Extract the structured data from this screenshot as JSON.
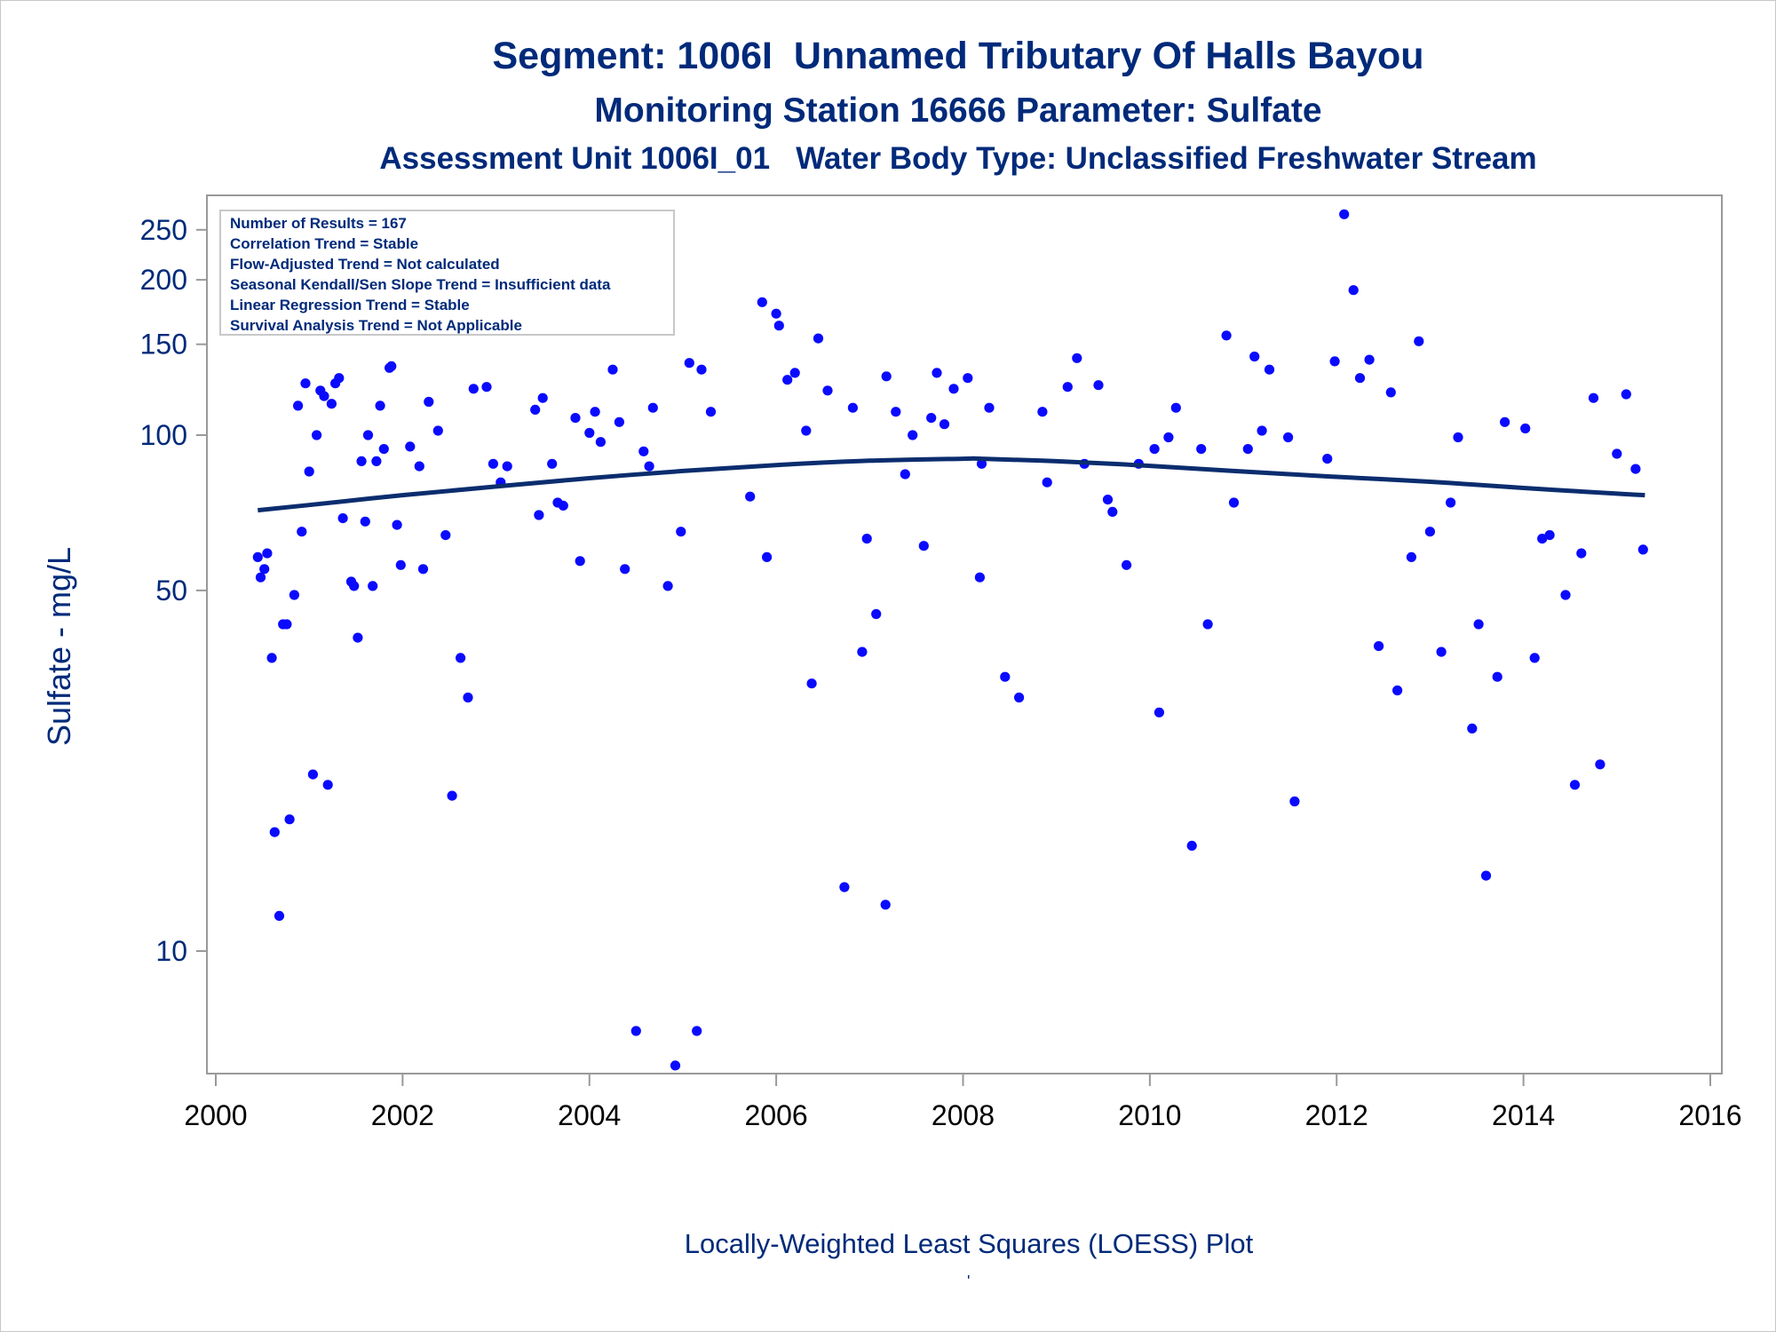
{
  "title": "Segment: 1006I  Unnamed Tributary Of Halls Bayou",
  "subtitle": "Monitoring Station 16666 Parameter: Sulfate",
  "subtitle2": "Assessment Unit 1006I_01   Water Body Type: Unclassified Freshwater Stream",
  "footer": "Locally-Weighted Least Squares (LOESS) Plot",
  "footer_mark": "'",
  "colors": {
    "text": "#002a7a",
    "points": "#0a0aff",
    "trend": "#0b2d6e",
    "frame": "#999999"
  },
  "stats": [
    "Number of Results = 167",
    "Correlation Trend = Stable",
    "Flow-Adjusted Trend = Not calculated",
    "Seasonal Kendall/Sen Slope Trend = Insufficient data",
    "Linear Regression Trend = Stable",
    "Survival Analysis Trend = Not Applicable"
  ],
  "chart_data": {
    "type": "scatter",
    "ylabel": "Sulfate - mg/L",
    "xlabel": "",
    "xlim": [
      2000,
      2016
    ],
    "ylim": [
      6.3,
      300
    ],
    "yscale": "log",
    "grid": false,
    "xticks": [
      2000,
      2002,
      2004,
      2006,
      2008,
      2010,
      2012,
      2014,
      2016
    ],
    "yticks": [
      10,
      50,
      100,
      150,
      200,
      250
    ],
    "points": [
      [
        2000.45,
        58
      ],
      [
        2000.48,
        53
      ],
      [
        2000.52,
        55
      ],
      [
        2000.55,
        59
      ],
      [
        2000.6,
        37
      ],
      [
        2000.63,
        17
      ],
      [
        2000.68,
        11.7
      ],
      [
        2000.72,
        43
      ],
      [
        2000.76,
        43
      ],
      [
        2000.79,
        18
      ],
      [
        2000.84,
        49
      ],
      [
        2000.88,
        114
      ],
      [
        2000.92,
        65
      ],
      [
        2000.96,
        126
      ],
      [
        2001.0,
        85
      ],
      [
        2001.04,
        22
      ],
      [
        2001.08,
        100
      ],
      [
        2001.12,
        122
      ],
      [
        2001.16,
        119
      ],
      [
        2001.2,
        21
      ],
      [
        2001.24,
        115
      ],
      [
        2001.28,
        126
      ],
      [
        2001.32,
        129
      ],
      [
        2001.36,
        69
      ],
      [
        2001.45,
        52
      ],
      [
        2001.48,
        51
      ],
      [
        2001.52,
        40.5
      ],
      [
        2001.56,
        89
      ],
      [
        2001.6,
        68
      ],
      [
        2001.63,
        100
      ],
      [
        2001.68,
        51
      ],
      [
        2001.72,
        89
      ],
      [
        2001.76,
        114
      ],
      [
        2001.8,
        94
      ],
      [
        2001.86,
        135
      ],
      [
        2001.88,
        136
      ],
      [
        2001.94,
        67
      ],
      [
        2001.98,
        56
      ],
      [
        2002.08,
        95
      ],
      [
        2002.18,
        87
      ],
      [
        2002.22,
        55
      ],
      [
        2002.28,
        116
      ],
      [
        2002.38,
        102
      ],
      [
        2002.46,
        64
      ],
      [
        2002.53,
        20
      ],
      [
        2002.62,
        37
      ],
      [
        2002.7,
        31
      ],
      [
        2002.76,
        123
      ],
      [
        2002.9,
        124
      ],
      [
        2002.97,
        88
      ],
      [
        2003.05,
        81
      ],
      [
        2003.12,
        87
      ],
      [
        2003.42,
        112
      ],
      [
        2003.5,
        118
      ],
      [
        2003.46,
        70
      ],
      [
        2003.6,
        88
      ],
      [
        2003.66,
        74
      ],
      [
        2003.72,
        73
      ],
      [
        2003.85,
        108
      ],
      [
        2003.9,
        57
      ],
      [
        2004.0,
        101
      ],
      [
        2004.06,
        111
      ],
      [
        2004.12,
        97
      ],
      [
        2004.25,
        134
      ],
      [
        2004.32,
        106
      ],
      [
        2004.38,
        55
      ],
      [
        2004.5,
        7
      ],
      [
        2004.58,
        93
      ],
      [
        2004.64,
        87
      ],
      [
        2004.68,
        113
      ],
      [
        2004.84,
        51
      ],
      [
        2004.92,
        6
      ],
      [
        2004.98,
        65
      ],
      [
        2005.07,
        138
      ],
      [
        2005.15,
        7
      ],
      [
        2005.2,
        134
      ],
      [
        2005.3,
        111
      ],
      [
        2005.72,
        76
      ],
      [
        2005.85,
        181
      ],
      [
        2005.9,
        58
      ],
      [
        2006.0,
        172
      ],
      [
        2006.03,
        163
      ],
      [
        2006.12,
        128
      ],
      [
        2006.2,
        132
      ],
      [
        2006.32,
        102
      ],
      [
        2006.38,
        33
      ],
      [
        2006.45,
        154
      ],
      [
        2006.55,
        122
      ],
      [
        2006.73,
        13.3
      ],
      [
        2006.82,
        113
      ],
      [
        2006.92,
        38
      ],
      [
        2006.97,
        63
      ],
      [
        2007.07,
        45
      ],
      [
        2007.17,
        12.3
      ],
      [
        2007.18,
        130
      ],
      [
        2007.28,
        111
      ],
      [
        2007.38,
        84
      ],
      [
        2007.46,
        100
      ],
      [
        2007.58,
        61
      ],
      [
        2007.66,
        108
      ],
      [
        2007.72,
        132
      ],
      [
        2007.8,
        105
      ],
      [
        2007.9,
        123
      ],
      [
        2008.05,
        129
      ],
      [
        2008.18,
        53
      ],
      [
        2008.2,
        88
      ],
      [
        2008.28,
        113
      ],
      [
        2008.45,
        34
      ],
      [
        2008.6,
        31
      ],
      [
        2008.85,
        111
      ],
      [
        2008.9,
        81
      ],
      [
        2009.12,
        124
      ],
      [
        2009.22,
        141
      ],
      [
        2009.3,
        88
      ],
      [
        2009.45,
        125
      ],
      [
        2009.55,
        75
      ],
      [
        2009.6,
        71
      ],
      [
        2009.75,
        56
      ],
      [
        2009.88,
        88
      ],
      [
        2010.05,
        94
      ],
      [
        2010.1,
        29
      ],
      [
        2010.2,
        99
      ],
      [
        2010.28,
        113
      ],
      [
        2010.45,
        16
      ],
      [
        2010.55,
        94
      ],
      [
        2010.62,
        43
      ],
      [
        2010.82,
        156
      ],
      [
        2010.9,
        74
      ],
      [
        2011.05,
        94
      ],
      [
        2011.12,
        142
      ],
      [
        2011.2,
        102
      ],
      [
        2011.28,
        134
      ],
      [
        2011.48,
        99
      ],
      [
        2011.55,
        19.5
      ],
      [
        2011.9,
        90
      ],
      [
        2011.98,
        139
      ],
      [
        2012.08,
        268
      ],
      [
        2012.18,
        191
      ],
      [
        2012.25,
        129
      ],
      [
        2012.35,
        140
      ],
      [
        2012.45,
        39
      ],
      [
        2012.58,
        121
      ],
      [
        2012.65,
        32
      ],
      [
        2012.8,
        58
      ],
      [
        2012.88,
        152
      ],
      [
        2013.0,
        65
      ],
      [
        2013.12,
        38
      ],
      [
        2013.22,
        74
      ],
      [
        2013.3,
        99
      ],
      [
        2013.45,
        27
      ],
      [
        2013.52,
        43
      ],
      [
        2013.6,
        14
      ],
      [
        2013.72,
        34
      ],
      [
        2013.8,
        106
      ],
      [
        2014.02,
        103
      ],
      [
        2014.12,
        37
      ],
      [
        2014.2,
        63
      ],
      [
        2014.28,
        64
      ],
      [
        2014.45,
        49
      ],
      [
        2014.55,
        21
      ],
      [
        2014.62,
        59
      ],
      [
        2014.75,
        118
      ],
      [
        2014.82,
        23
      ],
      [
        2015.0,
        92
      ],
      [
        2015.1,
        120
      ],
      [
        2015.2,
        86
      ],
      [
        2015.28,
        60
      ]
    ],
    "trend": [
      [
        2000.45,
        71.5
      ],
      [
        2001.0,
        73.2
      ],
      [
        2002.0,
        76.5
      ],
      [
        2003.0,
        79.5
      ],
      [
        2004.0,
        82.5
      ],
      [
        2005.0,
        85.2
      ],
      [
        2006.0,
        87.5
      ],
      [
        2007.0,
        89.2
      ],
      [
        2008.0,
        90.0
      ],
      [
        2008.2,
        90.0
      ],
      [
        2009.0,
        89.0
      ],
      [
        2010.0,
        87.2
      ],
      [
        2011.0,
        85.0
      ],
      [
        2012.0,
        83.0
      ],
      [
        2013.0,
        81.2
      ],
      [
        2014.0,
        79.0
      ],
      [
        2015.0,
        77.0
      ],
      [
        2015.3,
        76.5
      ]
    ]
  }
}
